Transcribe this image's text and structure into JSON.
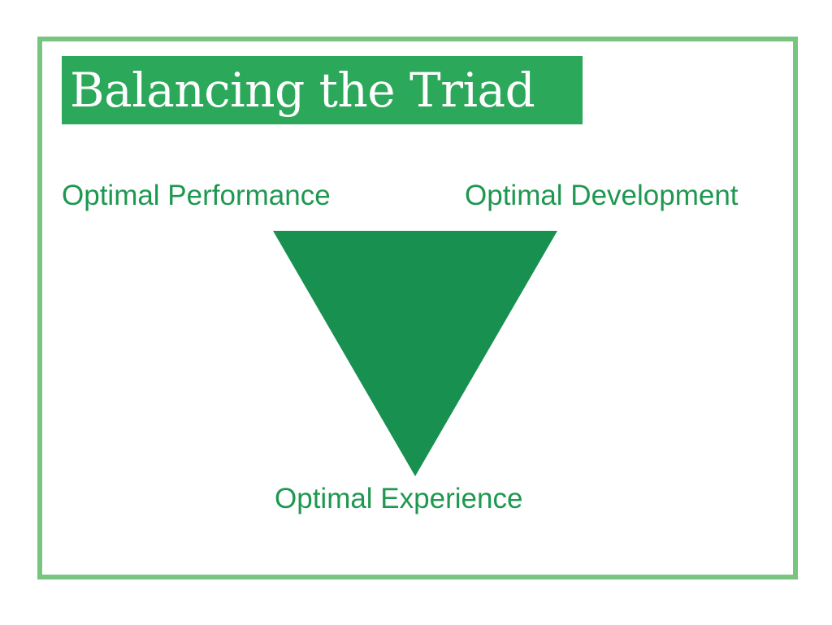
{
  "title": "Balancing the Triad",
  "labels": {
    "top_left": "Optimal Performance",
    "top_right": "Optimal Development",
    "bottom": "Optimal Experience"
  },
  "colors": {
    "frame": "#77c57f",
    "title_background": "#2ba85a",
    "title_text": "#ffffff",
    "label_text": "#1e9850",
    "triangle_fill": "#18904f"
  },
  "shape": "inverted-triangle"
}
